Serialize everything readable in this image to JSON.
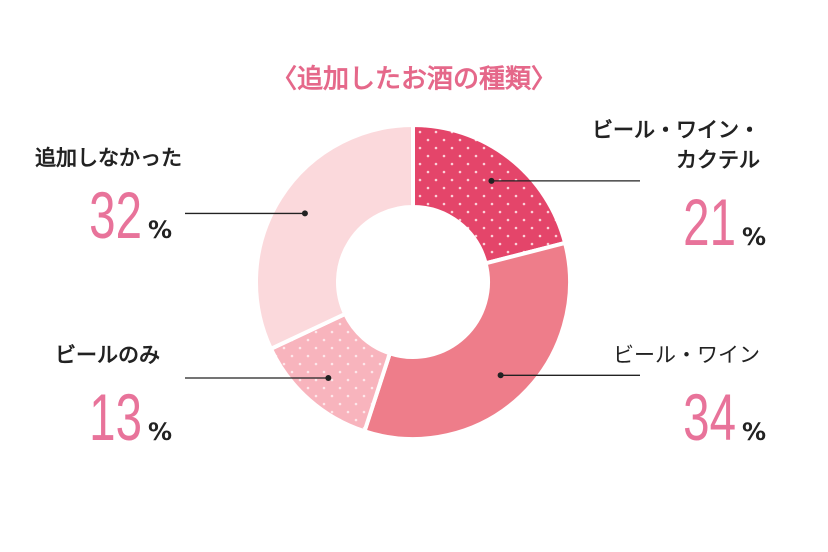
{
  "chart_data": {
    "type": "donut",
    "title": "〈追加したお酒の種類〉",
    "categories": [
      "ビール・ワイン・カクテル",
      "ビール・ワイン",
      "ビールのみ",
      "追加しなかった"
    ],
    "values": [
      21,
      34,
      13,
      32
    ],
    "unit": "%",
    "colors": [
      "#e4456a",
      "#ee7d8a",
      "#f8b4bd",
      "#fbd9dc"
    ]
  }
}
